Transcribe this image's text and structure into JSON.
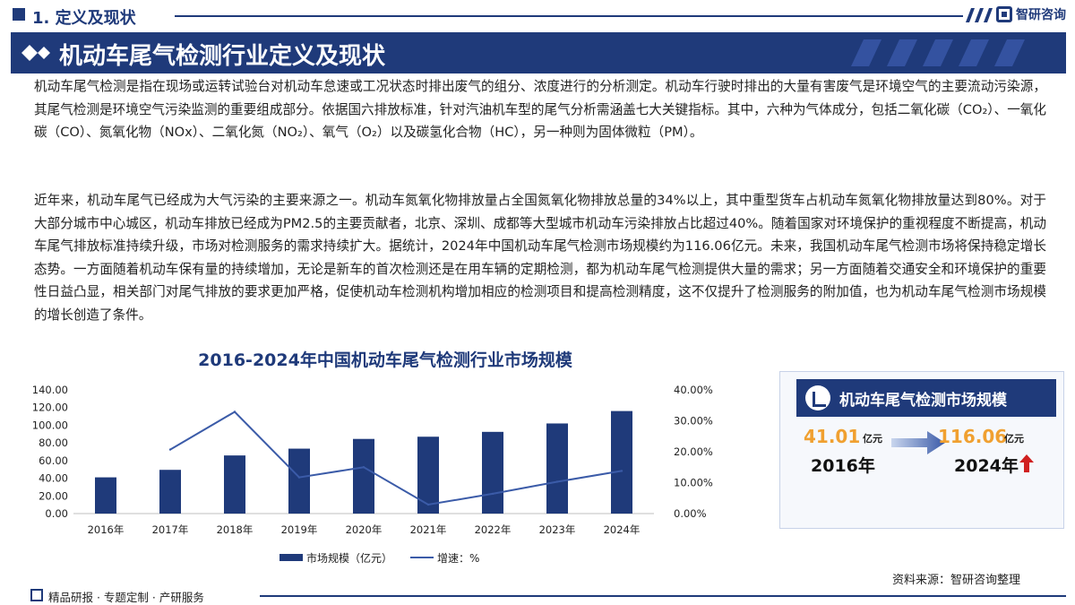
{
  "header": {
    "section_title": "1. 定义及现状",
    "logo_text": "智研咨询"
  },
  "banner": {
    "title": "机动车尾气检测行业定义及现状"
  },
  "paragraphs": {
    "p1": "机动车尾气检测是指在现场或运转试验台对机动车怠速或工况状态时排出废气的组分、浓度进行的分析测定。机动车行驶时排出的大量有害废气是环境空气的主要流动污染源，其尾气检测是环境空气污染监测的重要组成部分。依据国六排放标准，针对汽油机车型的尾气分析需涵盖七大关键指标。其中，六种为气体成分，包括二氧化碳（CO₂）、一氧化碳（CO）、氮氧化物（NOx）、二氧化氮（NO₂）、氧气（O₂）以及碳氢化合物（HC），另一种则为固体微粒（PM）。",
    "p2": "近年来，机动车尾气已经成为大气污染的主要来源之一。机动车氮氧化物排放量占全国氮氧化物排放总量的34%以上，其中重型货车占机动车氮氧化物排放量达到80%。对于大部分城市中心城区，机动车排放已经成为PM2.5的主要贡献者，北京、深圳、成都等大型城市机动车污染排放占比超过40%。随着国家对环境保护的重视程度不断提高，机动车尾气排放标准持续升级，市场对检测服务的需求持续扩大。据统计，2024年中国机动车尾气检测市场规模约为116.06亿元。未来，我国机动车尾气检测市场将保持稳定增长态势。一方面随着机动车保有量的持续增加，无论是新车的首次检测还是在用车辆的定期检测，都为机动车尾气检测提供大量的需求；另一方面随着交通安全和环境保护的重要性日益凸显，相关部门对尾气排放的要求更加严格，促使机动车检测机构增加相应的检测项目和提高检测精度，这不仅提升了检测服务的附加值，也为机动车尾气检测市场规模的增长创造了条件。"
  },
  "chart_data": {
    "type": "bar",
    "title": "2016-2024年中国机动车尾气检测行业市场规模",
    "categories": [
      "2016年",
      "2017年",
      "2018年",
      "2019年",
      "2020年",
      "2021年",
      "2022年",
      "2023年",
      "2024年"
    ],
    "series": [
      {
        "name": "市场规模（亿元）",
        "type": "bar",
        "axis": "left",
        "values": [
          41.01,
          49.5,
          65.8,
          73.5,
          84.5,
          87.0,
          92.5,
          102.0,
          116.06
        ]
      },
      {
        "name": "增速：%",
        "type": "line",
        "axis": "right",
        "values": [
          null,
          20.7,
          32.9,
          11.7,
          15.0,
          2.9,
          6.4,
          10.3,
          13.8
        ]
      }
    ],
    "y_left": {
      "min": 0,
      "max": 140,
      "ticks": [
        "0.00",
        "20.00",
        "40.00",
        "60.00",
        "80.00",
        "100.00",
        "120.00",
        "140.00"
      ]
    },
    "y_right": {
      "min": 0,
      "max": 40,
      "ticks": [
        "0.00%",
        "10.00%",
        "20.00%",
        "30.00%",
        "40.00%"
      ]
    },
    "grid": false,
    "legend_position": "bottom",
    "colors": {
      "bar": "#1f3a7a",
      "line": "#3b5ba8"
    }
  },
  "panel": {
    "title": "机动车尾气检测市场规模",
    "start_value": "41.01",
    "start_unit": "亿元",
    "start_year": "2016年",
    "end_value": "116.06",
    "end_unit": "亿元",
    "end_year": "2024年"
  },
  "legend": {
    "bar_label": "市场规模（亿元）",
    "line_label": "增速：%"
  },
  "source": "资料来源：智研咨询整理",
  "footer": {
    "text": "精品研报 · 专题定制 · 产研服务"
  },
  "colors": {
    "brand": "#1f3a7a",
    "accent_orange": "#f0a030",
    "accent_red": "#d02020"
  }
}
